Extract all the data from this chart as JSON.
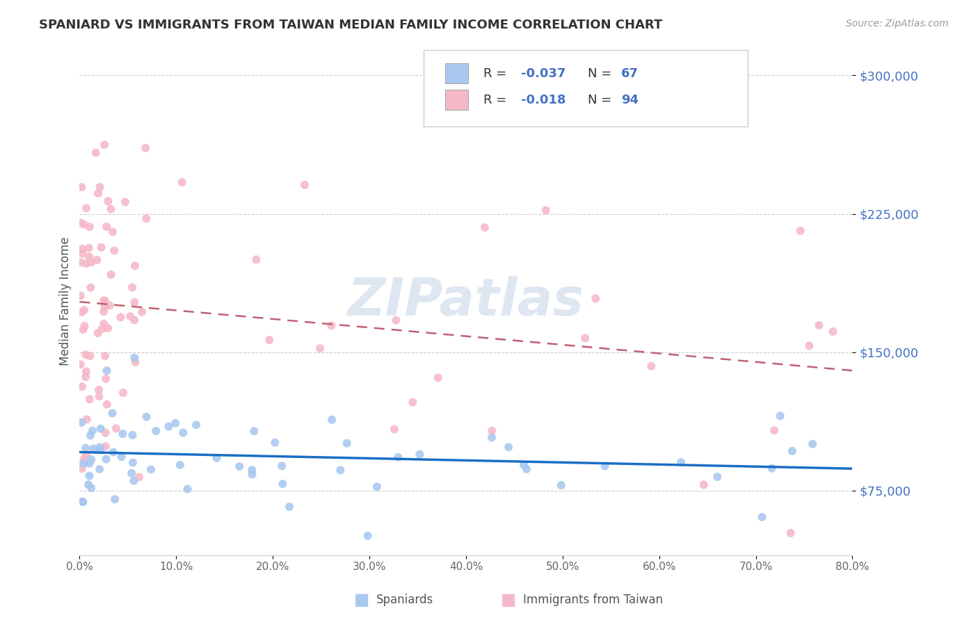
{
  "title": "SPANIARD VS IMMIGRANTS FROM TAIWAN MEDIAN FAMILY INCOME CORRELATION CHART",
  "source": "Source: ZipAtlas.com",
  "ylabel": "Median Family Income",
  "yticks": [
    75000,
    150000,
    225000,
    300000
  ],
  "ytick_labels": [
    "$75,000",
    "$150,000",
    "$225,000",
    "$300,000"
  ],
  "xmin": 0.0,
  "xmax": 80.0,
  "ymin": 40000,
  "ymax": 315000,
  "spaniards_color": "#a8c8f0",
  "spaniards_line_color": "#1a6ec4",
  "taiwan_color": "#f5b8c8",
  "taiwan_line_color": "#c06070",
  "watermark": "ZIPatlas",
  "watermark_color": "#c8d8e8",
  "background_color": "#ffffff",
  "spaniards_N": 67,
  "taiwan_N": 94,
  "spaniards_R": -0.037,
  "taiwan_R": -0.018
}
